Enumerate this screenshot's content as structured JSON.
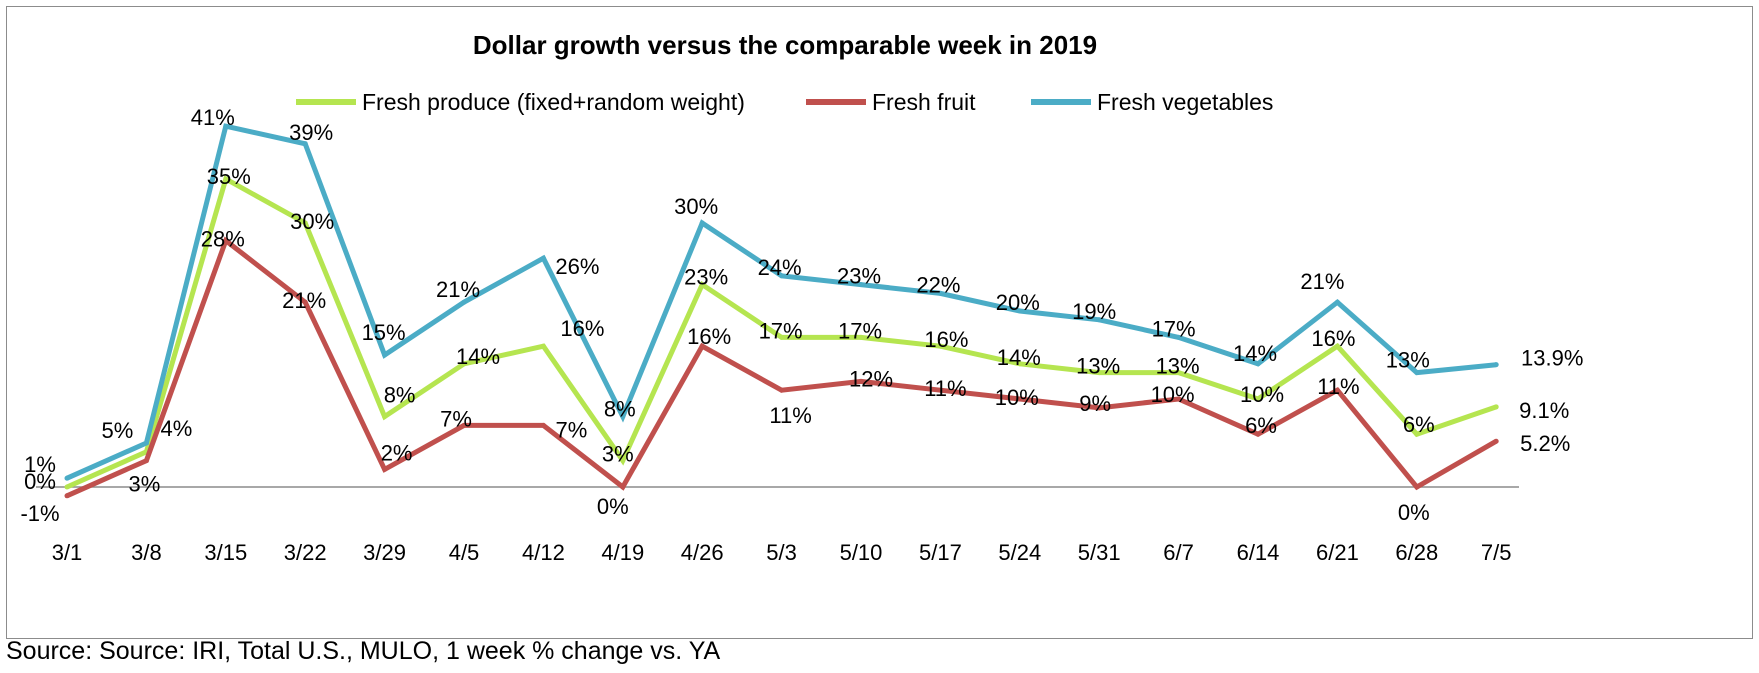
{
  "chart_data": {
    "type": "line",
    "title": "Dollar growth versus the comparable week in 2019",
    "categories": [
      "3/1",
      "3/8",
      "3/15",
      "3/22",
      "3/29",
      "4/5",
      "4/12",
      "4/19",
      "4/26",
      "5/3",
      "5/10",
      "5/17",
      "5/24",
      "5/31",
      "6/7",
      "6/14",
      "6/21",
      "6/28",
      "7/5"
    ],
    "series": [
      {
        "name": "Fresh produce (fixed+random weight)",
        "color": "#b5e550",
        "values": [
          0,
          4,
          35,
          30,
          8,
          14,
          16,
          3,
          23,
          17,
          17,
          16,
          14,
          13,
          13,
          10,
          16,
          6,
          9.1
        ],
        "labels": [
          "0%",
          "4%",
          "35%",
          "30%",
          "8%",
          "14%",
          "16%",
          "3%",
          "23%",
          "17%",
          "17%",
          "16%",
          "14%",
          "13%",
          "13%",
          "10%",
          "16%",
          "6%",
          "9.1%"
        ]
      },
      {
        "name": "Fresh fruit",
        "color": "#c0504d",
        "values": [
          -1,
          3,
          28,
          21,
          2,
          7,
          7,
          0,
          16,
          11,
          12,
          11,
          10,
          9,
          10,
          6,
          11,
          0,
          5.2
        ],
        "labels": [
          "-1%",
          "3%",
          "28%",
          "21%",
          "2%",
          "7%",
          "7%",
          "0%",
          "16%",
          "11%",
          "12%",
          "11%",
          "10%",
          "9%",
          "10%",
          "6%",
          "11%",
          "0%",
          "5.2%"
        ]
      },
      {
        "name": "Fresh vegetables",
        "color": "#4bacc6",
        "values": [
          1,
          5,
          41,
          39,
          15,
          21,
          26,
          8,
          30,
          24,
          23,
          22,
          20,
          19,
          17,
          14,
          21,
          13,
          13.9
        ],
        "labels": [
          "1%",
          "5%",
          "41%",
          "39%",
          "15%",
          "21%",
          "26%",
          "8%",
          "30%",
          "24%",
          "23%",
          "22%",
          "20%",
          "19%",
          "17%",
          "14%",
          "21%",
          "13%",
          "13.9%"
        ]
      }
    ],
    "legend_position": "top",
    "grid": false
  },
  "source": "Source: Source: IRI, Total U.S., MULO, 1 week % change vs. YA"
}
